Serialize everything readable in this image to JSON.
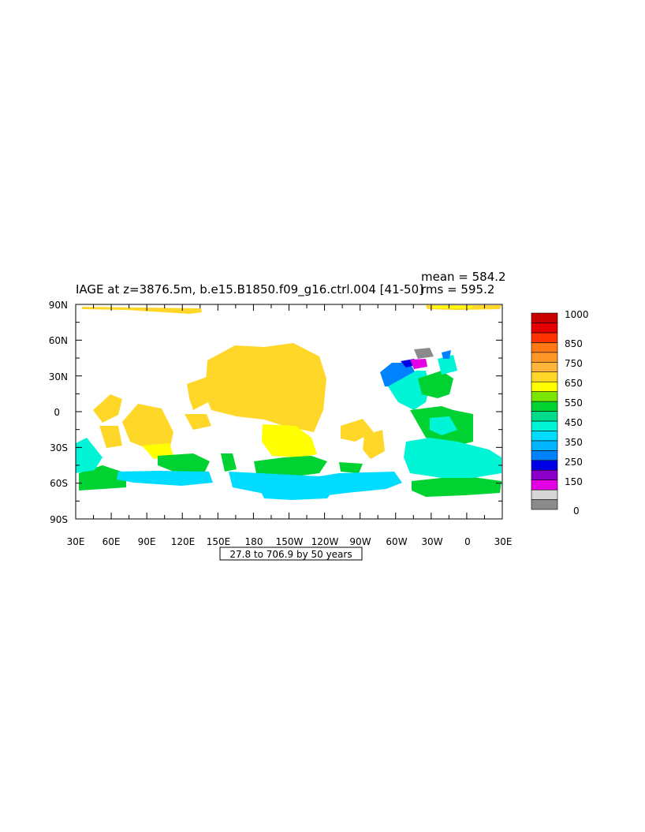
{
  "title": "IAGE at z=3876.5m, b.e15.B1850.f09_g16.ctrl.004 [41-50]",
  "stats": {
    "mean": "mean = 584.2",
    "rms": "rms = 595.2"
  },
  "contour_note": "27.8 to 706.9 by 50 years",
  "map": {
    "lat_ticks": [
      "90N",
      "60N",
      "30N",
      "0",
      "30S",
      "60S",
      "90S"
    ],
    "lon_ticks": [
      "30E",
      "60E",
      "90E",
      "120E",
      "150E",
      "180",
      "150W",
      "120W",
      "90W",
      "60W",
      "30W",
      "0",
      "30E"
    ]
  },
  "colorbar": {
    "labels": [
      "1000",
      "850",
      "750",
      "650",
      "550",
      "450",
      "350",
      "250",
      "150",
      "0"
    ],
    "colors": [
      "#8b8b8b",
      "#d7d7d7",
      "#e400e4",
      "#8b00c8",
      "#0000e6",
      "#0082ff",
      "#00b4ff",
      "#00dcff",
      "#00f5d7",
      "#00dc8c",
      "#00d232",
      "#78e600",
      "#ffff00",
      "#ffd728",
      "#ffb43c",
      "#ff9628",
      "#ff7814",
      "#ff3200",
      "#e60000",
      "#c80000"
    ]
  },
  "regions": {
    "atlantic_cyan": "#00f5d7",
    "atlantic_green": "#00d232",
    "pacific_yellow": "#ffd728",
    "pacific_bright": "#ffff00",
    "southern_cyan": "#00dcff",
    "southern_green": "#78e600",
    "north_atlantic_blue": "#0082ff",
    "labrador_purple": "#e400e4",
    "labrador_deepblue": "#0000e6",
    "gray": "#8b8b8b"
  }
}
